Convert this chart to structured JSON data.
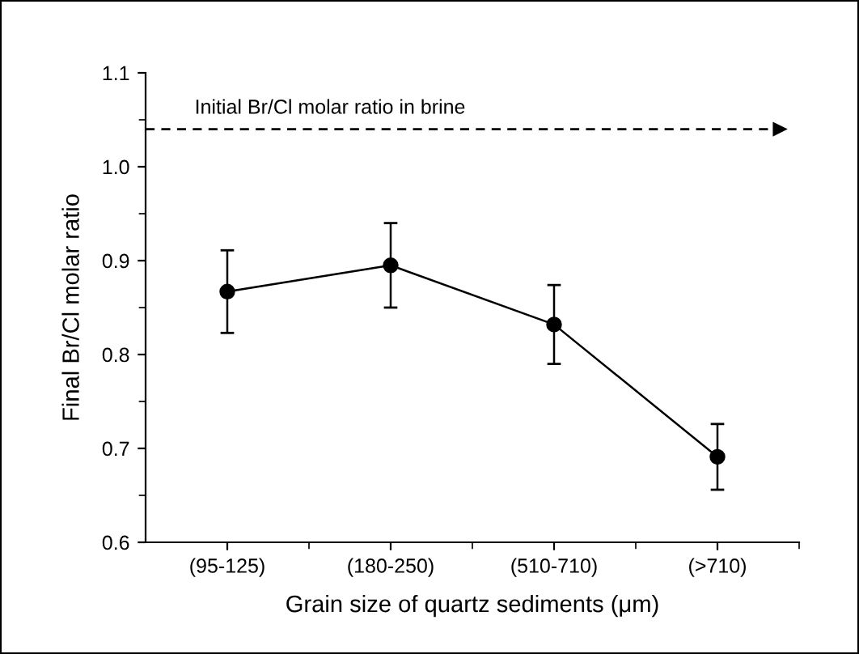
{
  "chart_data": {
    "type": "line",
    "xlabel": "Grain size of quartz sediments (μm)",
    "ylabel": "Final Br/Cl molar ratio",
    "categories": [
      "(95-125)",
      "(180-250)",
      "(510-710)",
      "(>710)"
    ],
    "series": [
      {
        "color": "#000000",
        "values": [
          0.867,
          0.895,
          0.832,
          0.691
        ],
        "errors": [
          0.044,
          0.045,
          0.042,
          0.035
        ]
      }
    ],
    "ylim": [
      0.6,
      1.1
    ],
    "yticks": [
      0.6,
      0.7,
      0.8,
      0.9,
      {
        "value": 1.0,
        "label": "1.0"
      },
      1.1
    ],
    "ref_lines": [
      {
        "axis": "y",
        "value": 1.04,
        "label": "Initial Br/Cl molar ratio in brine",
        "color": "#000000",
        "line_style": "dashed"
      }
    ],
    "marker": "circle",
    "line_style": "solid",
    "grid": false,
    "legend": false
  }
}
